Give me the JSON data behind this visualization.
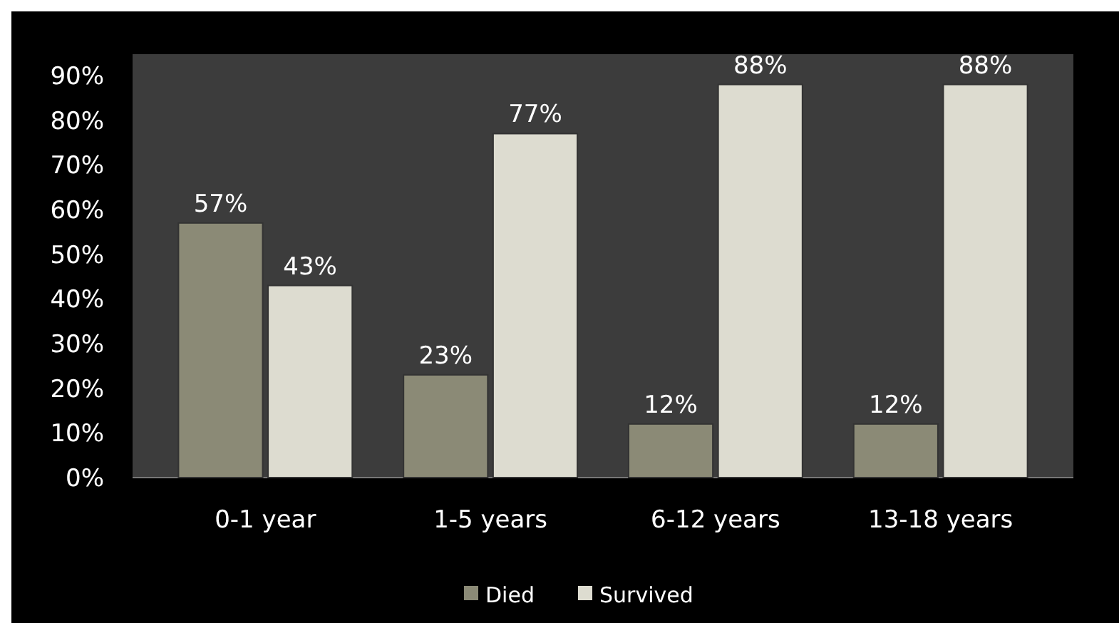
{
  "chart_data": {
    "type": "bar",
    "categories": [
      "0-1 year",
      "1-5 years",
      "6-12 years",
      "13-18 years"
    ],
    "series": [
      {
        "name": "Died",
        "color": "#8b8a76",
        "values": [
          57,
          23,
          12,
          12
        ],
        "value_labels": [
          "57%",
          "23%",
          "12%",
          "12%"
        ]
      },
      {
        "name": "Survived",
        "color": "#dddcd0",
        "values": [
          43,
          77,
          88,
          88
        ],
        "value_labels": [
          "43%",
          "77%",
          "88%",
          "88%"
        ]
      }
    ],
    "ylim": [
      0,
      90
    ],
    "yticks": [
      {
        "value": 0,
        "label": "0%"
      },
      {
        "value": 10,
        "label": "10%"
      },
      {
        "value": 20,
        "label": "20%"
      },
      {
        "value": 30,
        "label": "30%"
      },
      {
        "value": 40,
        "label": "40%"
      },
      {
        "value": 50,
        "label": "50%"
      },
      {
        "value": 60,
        "label": "60%"
      },
      {
        "value": 70,
        "label": "70%"
      },
      {
        "value": 80,
        "label": "80%"
      },
      {
        "value": 90,
        "label": "90%"
      }
    ],
    "legend": "bottom"
  }
}
